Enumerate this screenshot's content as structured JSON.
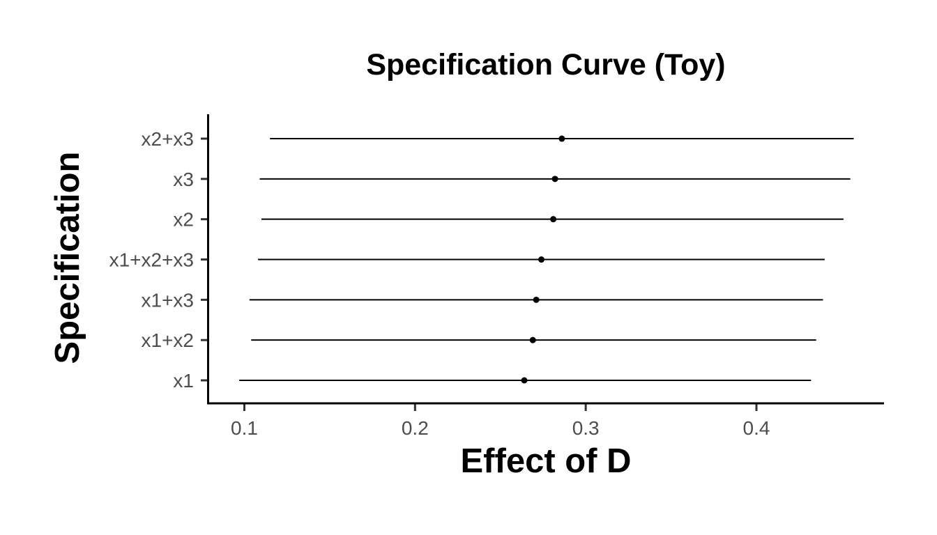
{
  "chart_data": {
    "type": "scatter",
    "subtype": "point-range (horizontal error bars)",
    "title": "Specification Curve (Toy)",
    "xlabel": "Effect of D",
    "ylabel": "Specification",
    "xlim": [
      0.08,
      0.473
    ],
    "xticks": [
      0.1,
      0.2,
      0.3,
      0.4
    ],
    "xtick_labels": [
      "0.1",
      "0.2",
      "0.3",
      "0.4"
    ],
    "grid": false,
    "legend": null,
    "categories": [
      "x1",
      "x1+x2",
      "x1+x3",
      "x1+x2+x3",
      "x2",
      "x3",
      "x2+x3"
    ],
    "series": [
      {
        "name": "estimate",
        "values": [
          0.264,
          0.269,
          0.271,
          0.274,
          0.281,
          0.282,
          0.286
        ]
      },
      {
        "name": "ci_low",
        "values": [
          0.097,
          0.104,
          0.103,
          0.108,
          0.11,
          0.109,
          0.115
        ]
      },
      {
        "name": "ci_high",
        "values": [
          0.432,
          0.435,
          0.439,
          0.44,
          0.451,
          0.455,
          0.457
        ]
      }
    ],
    "colors": {
      "point": "#000000",
      "interval": "#000000",
      "axis_line": "#000000",
      "tick_label": "#4d4d4d",
      "title": "#000000"
    }
  }
}
